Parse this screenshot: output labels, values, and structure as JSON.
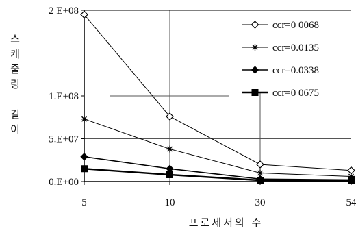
{
  "chart_data": {
    "type": "line",
    "title": "",
    "xlabel": "프로세서의 수",
    "ylabel": "스케줄링 길이",
    "ylabel_lines": [
      "스",
      "케",
      "줄",
      "링",
      "",
      "길",
      "이"
    ],
    "categories": [
      "5",
      "10",
      "30",
      "54"
    ],
    "y_ticks": [
      "0.E+00",
      "5.E+07",
      "1.E+08",
      "2 E+08"
    ],
    "ylim": [
      0,
      200000000
    ],
    "grid": "partial",
    "legend_position": "top-right",
    "series": [
      {
        "name": "ccr=0 0068",
        "marker": "diamond-open",
        "color": "#000000",
        "values": [
          195000000,
          76000000,
          20000000,
          13000000
        ]
      },
      {
        "name": "ccr=0.0135",
        "marker": "star",
        "color": "#000000",
        "values": [
          73000000,
          38000000,
          10000000,
          6000000
        ]
      },
      {
        "name": "ccr=0.0338",
        "marker": "diamond-filled",
        "color": "#000000",
        "values": [
          29000000,
          15000000,
          3000000,
          2000000
        ]
      },
      {
        "name": "ccr=0 0675",
        "marker": "square-filled",
        "color": "#000000",
        "values": [
          15000000,
          8000000,
          1500000,
          1000000
        ]
      }
    ]
  }
}
